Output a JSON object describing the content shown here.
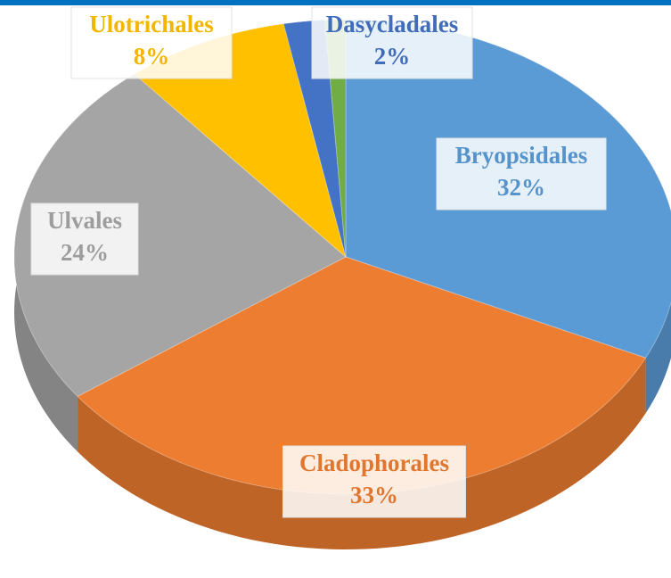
{
  "chart_data": {
    "type": "pie",
    "categories": [
      "Bryopsidales",
      "Cladophorales",
      "Ulvales",
      "Ulotrichales",
      "Dasycladales",
      null
    ],
    "values": [
      32,
      33,
      24,
      8,
      2,
      1
    ],
    "value_labels": [
      "32%",
      "33%",
      "24%",
      "8%",
      "2%",
      null
    ],
    "colors": [
      "#5b9bd5",
      "#ed7d31",
      "#a5a5a5",
      "#ffc000",
      "#4472c4",
      "#70ad47"
    ],
    "three_d": true
  }
}
